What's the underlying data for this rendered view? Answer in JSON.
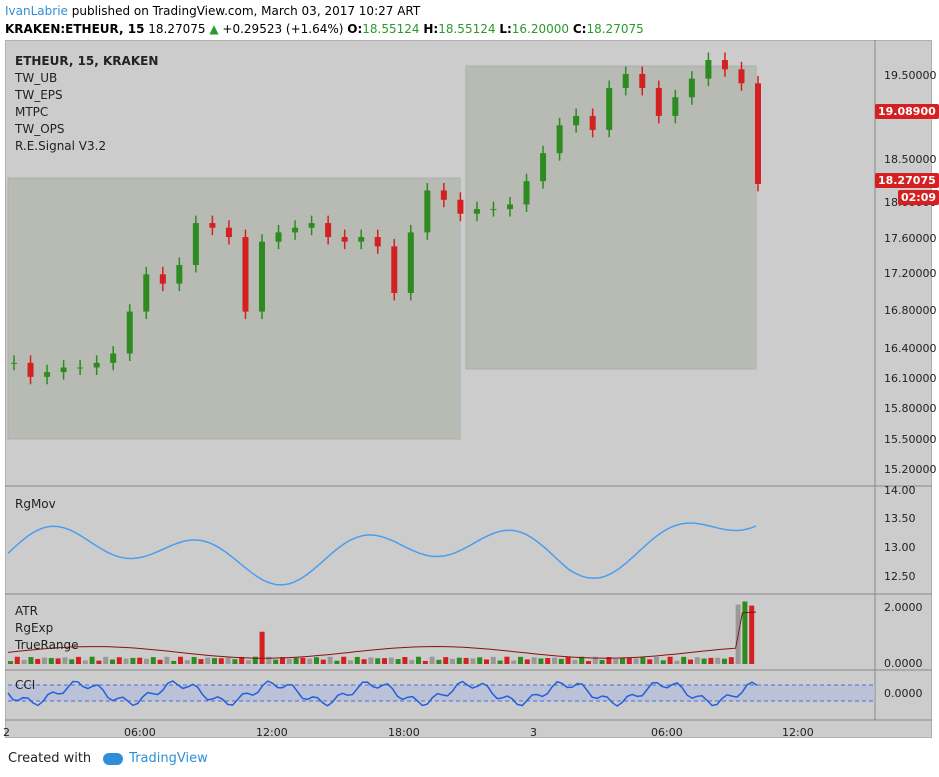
{
  "header": {
    "user": "IvanLabrie",
    "published": "published on TradingView.com, March 03, 2017 10:27 ART",
    "symbol": "KRAKEN:ETHEUR, 15",
    "last": "18.27075",
    "change": "+0.29523 (+1.64%)",
    "o_label": "O:",
    "o": "18.55124",
    "h_label": "H:",
    "h": "18.55124",
    "l_label": "L:",
    "l": "16.20000",
    "c_label": "C:",
    "c": "18.27075"
  },
  "main_pane": {
    "legend": [
      "ETHEUR, 15, KRAKEN",
      "TW_UB",
      "TW_EPS",
      "MTPC",
      "TW_OPS",
      "R.E.Signal V3.2"
    ],
    "y_ticks": [
      "19.50000",
      "18.50000",
      "18.00000",
      "17.60000",
      "17.20000",
      "16.80000",
      "16.40000",
      "16.10000",
      "15.80000",
      "15.50000",
      "15.20000"
    ],
    "price_tags": {
      "upper": "19.08900",
      "current": "18.27075",
      "countdown": "02:09"
    }
  },
  "rgmov_pane": {
    "legend": "RgMov",
    "y_ticks": [
      "14.00",
      "13.50",
      "13.00",
      "12.50"
    ]
  },
  "atr_pane": {
    "legend": [
      "ATR",
      "RgExp",
      "TrueRange"
    ],
    "y_ticks": [
      "2.0000",
      "0.0000"
    ]
  },
  "cci_pane": {
    "legend": "CCI",
    "y_ticks": [
      "0.0000"
    ]
  },
  "x_axis": {
    "labels": [
      "2",
      "06:00",
      "12:00",
      "18:00",
      "3",
      "06:00",
      "12:00"
    ]
  },
  "footer": {
    "created": "Created with",
    "brand": "TradingView"
  },
  "colors": {
    "up": "#2e8b20",
    "down": "#d42020",
    "accent": "#2f8fd6",
    "bg": "#cccccc"
  },
  "chart_data": {
    "type": "candlestick",
    "y_range": [
      15.2,
      19.6
    ],
    "candles_approx_close": [
      16.35,
      16.2,
      16.25,
      16.3,
      16.3,
      16.35,
      16.45,
      16.9,
      17.3,
      17.2,
      17.4,
      17.85,
      17.8,
      17.7,
      16.9,
      17.65,
      17.75,
      17.8,
      17.85,
      17.7,
      17.65,
      17.7,
      17.6,
      17.1,
      17.75,
      18.2,
      18.1,
      17.95,
      18.0,
      18.0,
      18.05,
      18.3,
      18.6,
      18.9,
      19.0,
      18.85,
      19.3,
      19.45,
      19.3,
      19.0,
      19.2,
      19.4,
      19.6,
      19.5,
      19.35,
      18.27
    ],
    "rgmov_range": [
      12.3,
      14.0
    ],
    "atr_range": [
      0,
      2.2
    ]
  }
}
